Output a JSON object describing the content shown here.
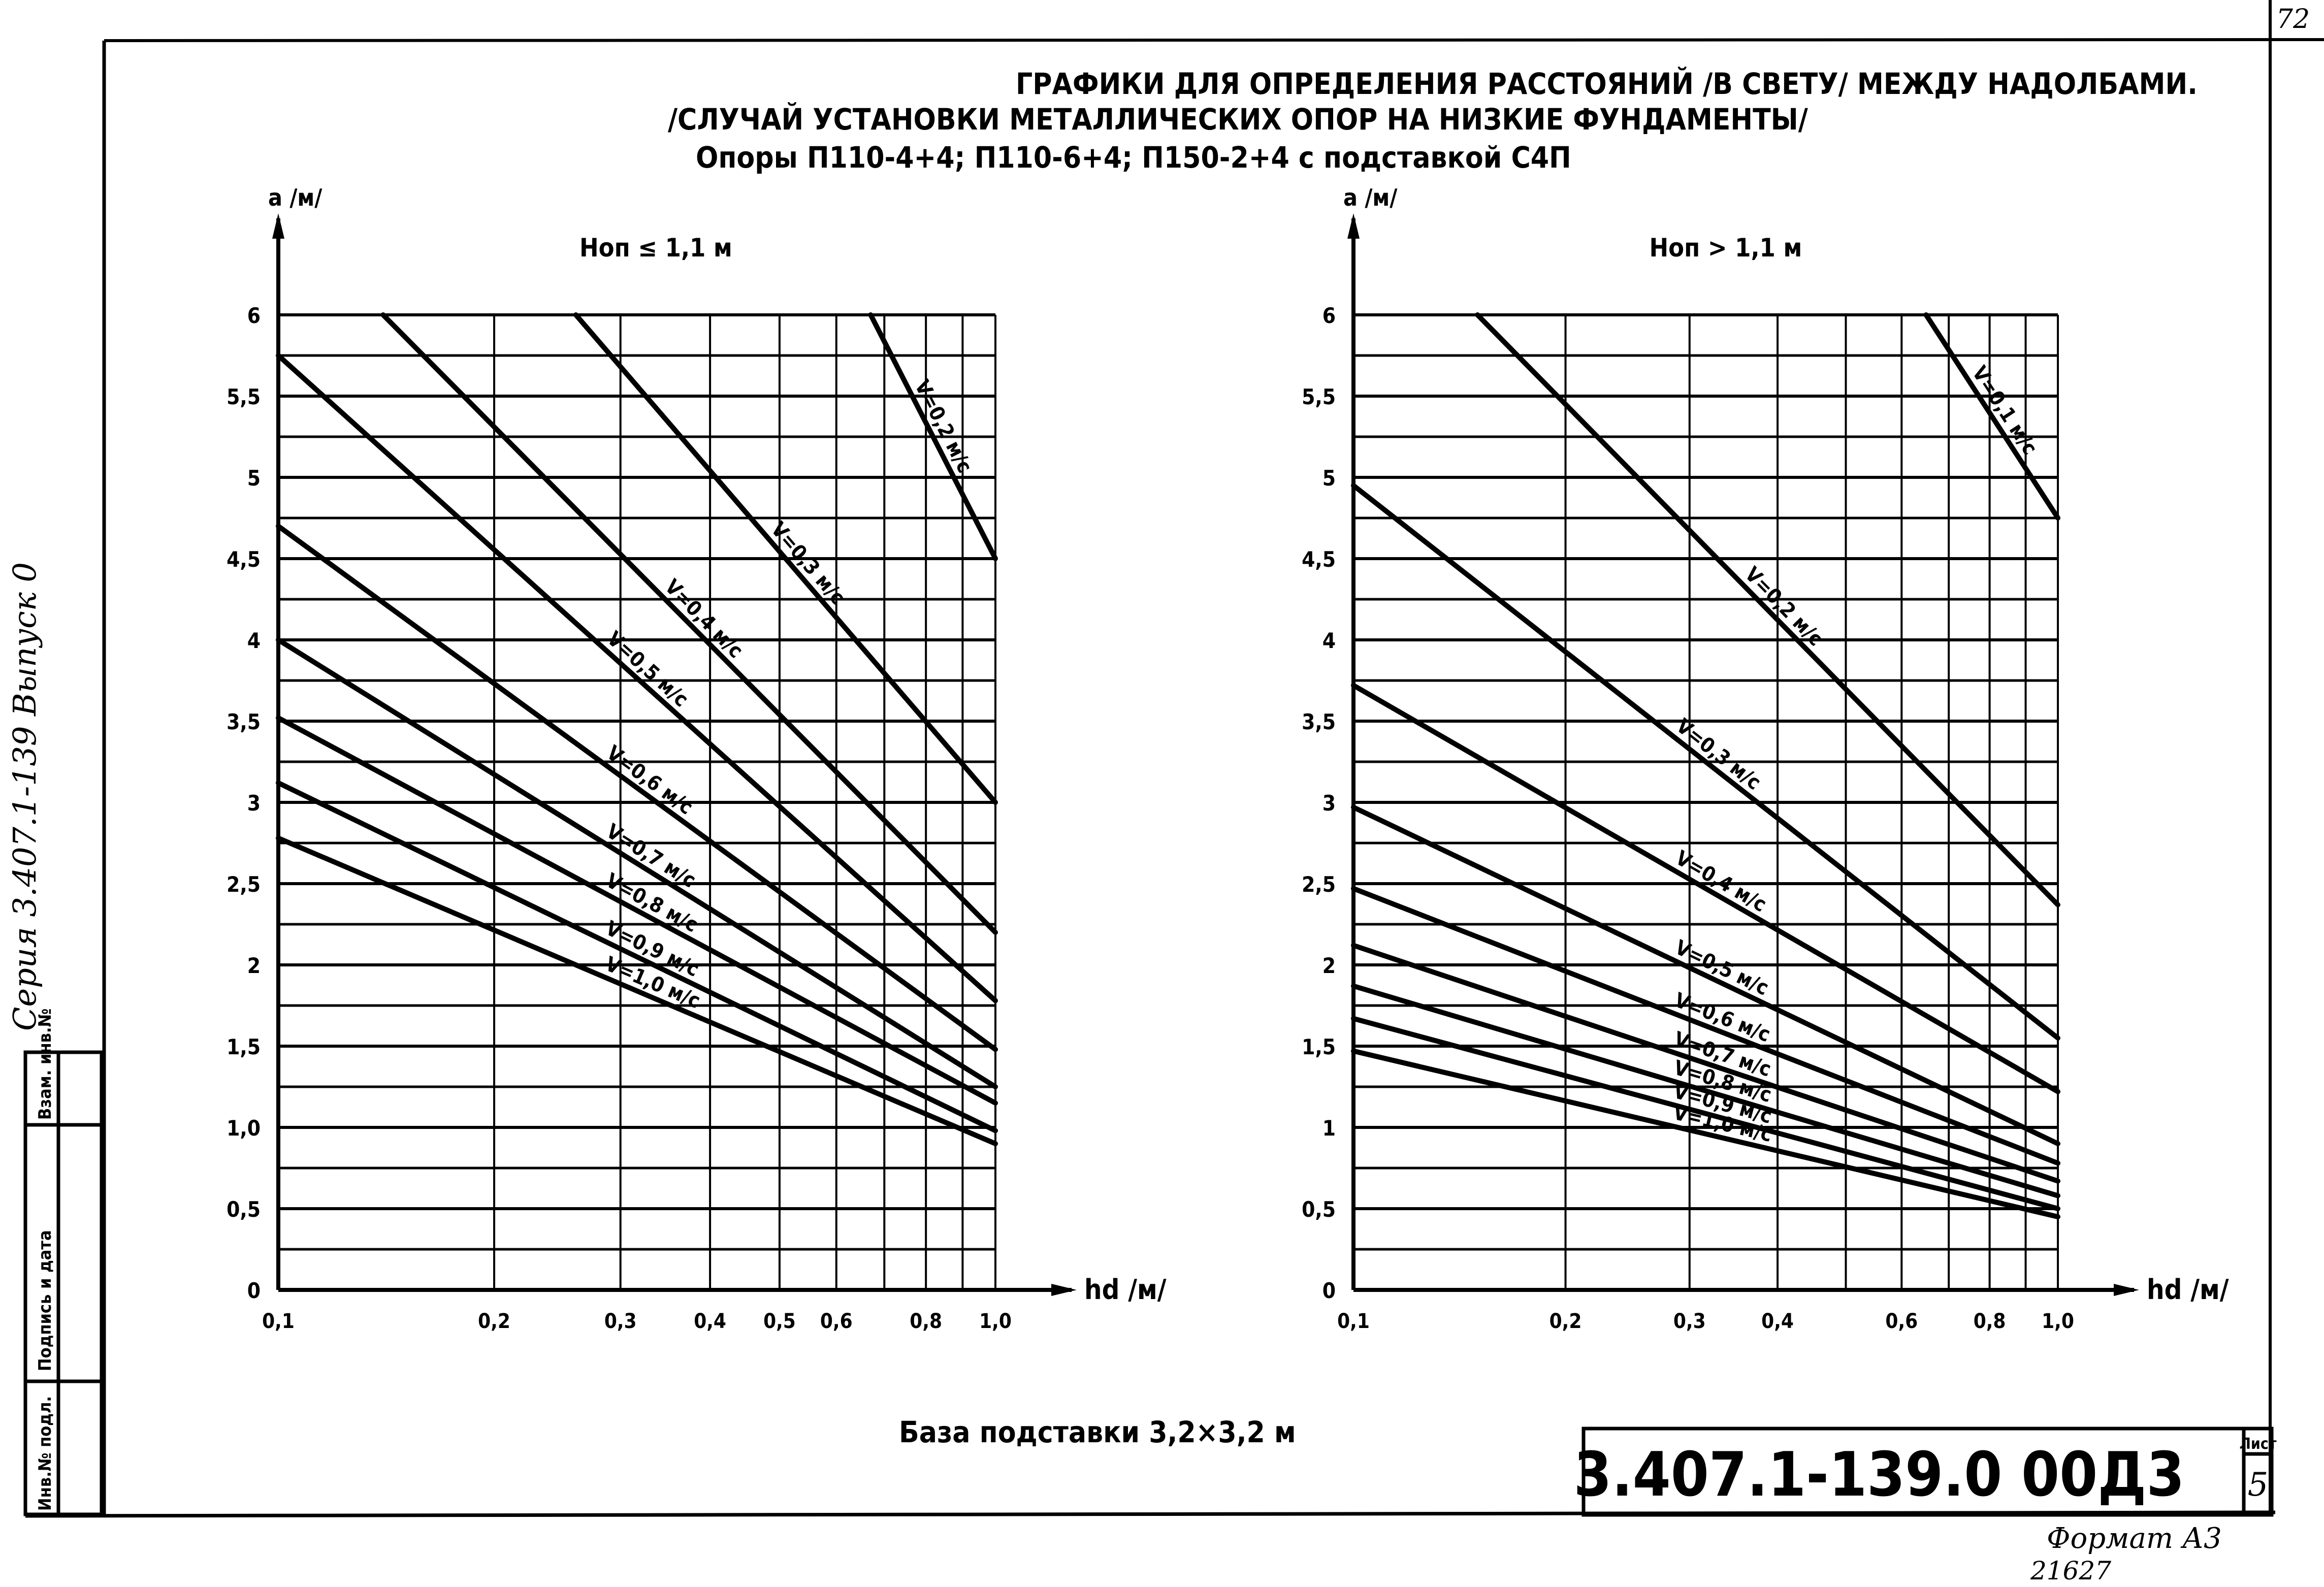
{
  "page_number": "72",
  "title": {
    "line1": "ГРАФИКИ ДЛЯ ОПРЕДЕЛЕНИЯ  РАССТОЯНИЙ /В СВЕТУ/ МЕЖДУ НАДОЛБАМИ.",
    "line2": "/СЛУЧАЙ УСТАНОВКИ МЕТАЛЛИЧЕСКИХ ОПОР НА НИЗКИЕ  ФУНДАМЕНТЫ/",
    "line3": "Опоры П110-4+4; П110-6+4; П150-2+4  с подставкой С4П"
  },
  "side_text": "Серия 3.407.1-139 Выпуск 0",
  "stamp": {
    "cells": [
      "Взам. инв.№",
      "Подпись и дата",
      "Инв.№ подл."
    ]
  },
  "caption": "База подставки  3,2×3,2 м",
  "title_block": {
    "code": "3.407.1-139.0  00Д3",
    "sheet_label": "Лист",
    "sheet_number": "5"
  },
  "format_note": "Формат А3",
  "archive_no": "21627",
  "chart_data": [
    {
      "type": "line",
      "title": "Hоп ≤ 1,1 м",
      "xlabel": "hd /м/",
      "ylabel": "a /м/",
      "xscale": "log",
      "xlim": [
        0.1,
        1.0
      ],
      "ylim": [
        0,
        6
      ],
      "grid": true,
      "x_ticks": [
        0.1,
        0.2,
        0.3,
        0.4,
        0.5,
        0.6,
        0.8,
        1.0
      ],
      "x_tick_labels": [
        "0,1",
        "0,2",
        "0,3",
        "0,4",
        "0,5",
        "0,6",
        "0,8",
        "1,0"
      ],
      "y_ticks": [
        0,
        0.5,
        1,
        1.5,
        2,
        2.5,
        3,
        3.5,
        4,
        4.5,
        5,
        5.5,
        6
      ],
      "y_tick_labels": [
        "0",
        "0,5",
        "1,0",
        "1,5",
        "2",
        "2,5",
        "3",
        "3,5",
        "4",
        "4,5",
        "5",
        "5,5",
        "6"
      ],
      "series": [
        {
          "name": "V=0,2 м/с",
          "x": [
            0.67,
            1.0
          ],
          "y": [
            6.0,
            4.5
          ]
        },
        {
          "name": "V=0,3 м/с",
          "x": [
            0.26,
            1.0
          ],
          "y": [
            6.0,
            3.0
          ]
        },
        {
          "name": "V=0,4 м/с",
          "x": [
            0.14,
            1.0
          ],
          "y": [
            6.0,
            2.2
          ]
        },
        {
          "name": "V=0,5 м/с",
          "x": [
            0.1,
            1.0
          ],
          "y": [
            5.75,
            1.78
          ]
        },
        {
          "name": "V=0,6 м/с",
          "x": [
            0.1,
            1.0
          ],
          "y": [
            4.7,
            1.48
          ]
        },
        {
          "name": "V=0,7 м/с",
          "x": [
            0.1,
            1.0
          ],
          "y": [
            4.0,
            1.25
          ]
        },
        {
          "name": "V=0,8 м/с",
          "x": [
            0.1,
            1.0
          ],
          "y": [
            3.52,
            1.15
          ]
        },
        {
          "name": "V=0,9 м/с",
          "x": [
            0.1,
            1.0
          ],
          "y": [
            3.12,
            0.98
          ]
        },
        {
          "name": "V=1,0 м/с",
          "x": [
            0.1,
            1.0
          ],
          "y": [
            2.78,
            0.9
          ]
        }
      ]
    },
    {
      "type": "line",
      "title": "Hоп > 1,1 м",
      "xlabel": "hd /м/",
      "ylabel": "a /м/",
      "xscale": "log",
      "xlim": [
        0.1,
        1.0
      ],
      "ylim": [
        0,
        6
      ],
      "grid": true,
      "x_ticks": [
        0.1,
        0.2,
        0.3,
        0.4,
        0.6,
        0.8,
        1.0
      ],
      "x_tick_labels": [
        "0,1",
        "0,2",
        "0,3",
        "0,4",
        "0,6",
        "0,8",
        "1,0"
      ],
      "y_ticks": [
        0,
        0.5,
        1,
        1.5,
        2,
        2.5,
        3,
        3.5,
        4,
        4.5,
        5,
        5.5,
        6
      ],
      "y_tick_labels": [
        "0",
        "0,5",
        "1",
        "1,5",
        "2",
        "2,5",
        "3",
        "3,5",
        "4",
        "4,5",
        "5",
        "5,5",
        "6"
      ],
      "series": [
        {
          "name": "V=0,1 м/с",
          "x": [
            0.65,
            1.0
          ],
          "y": [
            6.0,
            4.75
          ]
        },
        {
          "name": "V=0,2 м/с",
          "x": [
            0.15,
            1.0
          ],
          "y": [
            6.0,
            2.37
          ]
        },
        {
          "name": "V=0,3 м/с",
          "x": [
            0.1,
            1.0
          ],
          "y": [
            4.95,
            1.55
          ]
        },
        {
          "name": "V=0,4 м/с",
          "x": [
            0.1,
            1.0
          ],
          "y": [
            3.72,
            1.22
          ]
        },
        {
          "name": "V=0,5 м/с",
          "x": [
            0.1,
            1.0
          ],
          "y": [
            2.97,
            0.9
          ]
        },
        {
          "name": "V=0,6 м/с",
          "x": [
            0.1,
            1.0
          ],
          "y": [
            2.47,
            0.78
          ]
        },
        {
          "name": "V=0,7 м/с",
          "x": [
            0.1,
            1.0
          ],
          "y": [
            2.12,
            0.67
          ]
        },
        {
          "name": "V=0,8 м/с",
          "x": [
            0.1,
            1.0
          ],
          "y": [
            1.87,
            0.58
          ]
        },
        {
          "name": "V=0,9 м/с",
          "x": [
            0.1,
            1.0
          ],
          "y": [
            1.67,
            0.5
          ]
        },
        {
          "name": "V=1,0 м/с",
          "x": [
            0.1,
            1.0
          ],
          "y": [
            1.47,
            0.45
          ]
        }
      ]
    }
  ]
}
